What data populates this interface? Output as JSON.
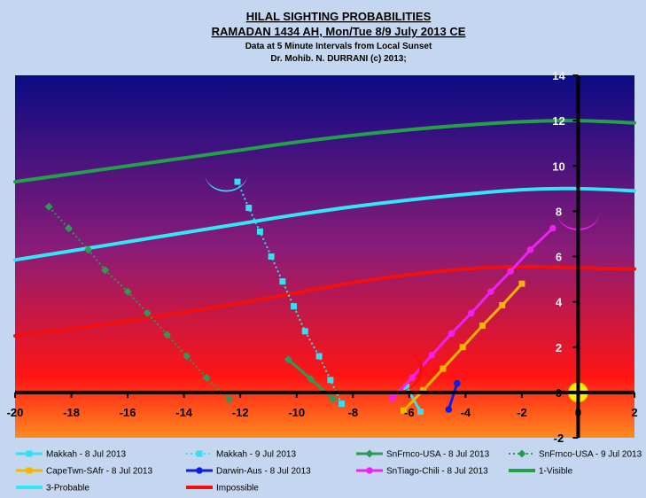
{
  "chart_data": {
    "type": "line",
    "title": "HILAL SIGHTING PROBABILITIES",
    "subtitle": "RAMADAN 1434 AH,  Mon/Tue 8/9 July 2013 CE",
    "subtitle2": "Data at 5 Minute Intervals from Local Sunset",
    "author": "Dr. Mohib. N. DURRANI (c) 2013;",
    "xlim": [
      -20,
      2
    ],
    "ylim": [
      -2,
      14
    ],
    "x_ticks": [
      -20,
      -18,
      -16,
      -14,
      -12,
      -10,
      -8,
      -6,
      -4,
      -2,
      0,
      2
    ],
    "x_tick_labels": [
      "-20",
      "-18",
      "-16",
      "-14",
      "-12",
      "-10",
      "-8",
      "-6",
      "-4",
      "-2",
      "0",
      "2"
    ],
    "y_ticks": [
      -2,
      0,
      2,
      4,
      6,
      8,
      10,
      12,
      14
    ],
    "y_tick_labels": [
      "-2",
      "0",
      "2",
      "4",
      "6",
      "8",
      "10",
      "12",
      "14"
    ],
    "grid": false,
    "legend_position": "bottom",
    "series": [
      {
        "name": "Makkah - 8 Jul 2013",
        "color": "#33e0f2",
        "style": "solid",
        "marker": "square",
        "points": [
          [
            -6.1,
            0.25
          ],
          [
            -5.6,
            -0.85
          ]
        ]
      },
      {
        "name": "Makkah - 9 Jul 2013",
        "color": "#33e0f2",
        "style": "dotted",
        "marker": "square",
        "points": [
          [
            -12.1,
            9.3
          ],
          [
            -11.7,
            8.15
          ],
          [
            -11.3,
            7.1
          ],
          [
            -10.9,
            6.0
          ],
          [
            -10.5,
            4.9
          ],
          [
            -10.1,
            3.8
          ],
          [
            -9.7,
            2.7
          ],
          [
            -9.2,
            1.6
          ],
          [
            -8.8,
            0.55
          ],
          [
            -8.4,
            -0.5
          ]
        ]
      },
      {
        "name": "SnFrnco-USA - 8 Jul 2013",
        "color": "#2e9a55",
        "style": "solid",
        "marker": "diamond",
        "points": [
          [
            -10.3,
            1.45
          ],
          [
            -9.5,
            0.6
          ],
          [
            -8.7,
            -0.3
          ]
        ]
      },
      {
        "name": "SnFrnco-USA - 9 Jul 2013",
        "color": "#2e9a55",
        "style": "dotted",
        "marker": "diamond",
        "points": [
          [
            -18.8,
            8.2
          ],
          [
            -18.1,
            7.25
          ],
          [
            -17.4,
            6.3
          ],
          [
            -16.8,
            5.4
          ],
          [
            -16.0,
            4.45
          ],
          [
            -15.3,
            3.5
          ],
          [
            -14.6,
            2.55
          ],
          [
            -13.9,
            1.6
          ],
          [
            -13.2,
            0.65
          ],
          [
            -12.4,
            -0.3
          ]
        ]
      },
      {
        "name": "CapeTwn-SAfr - 8 Jul 2013",
        "color": "#f7b500",
        "style": "solid",
        "marker": "square",
        "points": [
          [
            -6.2,
            -0.8
          ],
          [
            -5.5,
            0.1
          ],
          [
            -4.8,
            1.05
          ],
          [
            -4.1,
            2.0
          ],
          [
            -3.4,
            2.95
          ],
          [
            -2.7,
            3.85
          ],
          [
            -2.0,
            4.8
          ]
        ]
      },
      {
        "name": "Darwin-Aus - 8 Jul 2013",
        "color": "#0a1fe0",
        "style": "solid",
        "marker": "circle",
        "points": [
          [
            -4.6,
            -0.75
          ],
          [
            -4.3,
            0.4
          ]
        ]
      },
      {
        "name": "SnTiago-Chili - 8 Jul 2013",
        "color": "#ee22ee",
        "style": "solid",
        "marker": "circle",
        "points": [
          [
            -6.6,
            -0.25
          ],
          [
            -5.9,
            0.65
          ],
          [
            -5.2,
            1.65
          ],
          [
            -4.5,
            2.6
          ],
          [
            -3.8,
            3.5
          ],
          [
            -3.1,
            4.45
          ],
          [
            -2.4,
            5.35
          ],
          [
            -1.7,
            6.3
          ],
          [
            -0.9,
            7.25
          ]
        ]
      },
      {
        "name": "1-Visible",
        "color": "#25a04a",
        "style": "solid",
        "marker": "none",
        "points": [
          [
            -20,
            9.3
          ],
          [
            -18,
            9.65
          ],
          [
            -16,
            10.0
          ],
          [
            -14,
            10.35
          ],
          [
            -12,
            10.7
          ],
          [
            -10,
            11.05
          ],
          [
            -8,
            11.35
          ],
          [
            -6,
            11.6
          ],
          [
            -4,
            11.8
          ],
          [
            -2,
            11.95
          ],
          [
            0,
            12.0
          ],
          [
            2,
            11.9
          ]
        ]
      },
      {
        "name": "3-Probable",
        "color": "#33e6f5",
        "style": "solid",
        "marker": "none",
        "points": [
          [
            -20,
            5.85
          ],
          [
            -18,
            6.25
          ],
          [
            -16,
            6.65
          ],
          [
            -14,
            7.05
          ],
          [
            -12,
            7.45
          ],
          [
            -10,
            7.85
          ],
          [
            -8,
            8.2
          ],
          [
            -6,
            8.5
          ],
          [
            -4,
            8.75
          ],
          [
            -2,
            8.95
          ],
          [
            0,
            9.0
          ],
          [
            2,
            8.9
          ]
        ]
      },
      {
        "name": "Impossible",
        "color": "#f01010",
        "style": "solid",
        "marker": "none",
        "points": [
          [
            -20,
            2.5
          ],
          [
            -18,
            2.8
          ],
          [
            -16,
            3.15
          ],
          [
            -14,
            3.55
          ],
          [
            -12,
            3.95
          ],
          [
            -10,
            4.4
          ],
          [
            -8,
            4.85
          ],
          [
            -6,
            5.2
          ],
          [
            -4,
            5.45
          ],
          [
            -2,
            5.55
          ],
          [
            0,
            5.5
          ],
          [
            2,
            5.45
          ]
        ]
      }
    ],
    "annotations": [
      {
        "kind": "crescent",
        "color": "#33e6f5",
        "x": -12.5,
        "y": 9.5,
        "orientation": "up"
      },
      {
        "kind": "crescent",
        "color": "#ee22ee",
        "x": 0,
        "y": 7.8,
        "orientation": "up"
      },
      {
        "kind": "crescent",
        "color": "#f01010",
        "x": -6.4,
        "y": 1.0,
        "orientation": "right"
      },
      {
        "kind": "sun",
        "color": "#ffee00",
        "x": 0,
        "y": 0
      }
    ],
    "colors": {
      "gradient_top": "#0b0b84",
      "gradient_mid": "#8a1c78",
      "gradient_low": "#ff1414",
      "gradient_bottom": "#ff8a20",
      "axis": "#000000",
      "tick_label_positive": "#f2f2f2",
      "tick_label_negative": "#000000"
    }
  }
}
